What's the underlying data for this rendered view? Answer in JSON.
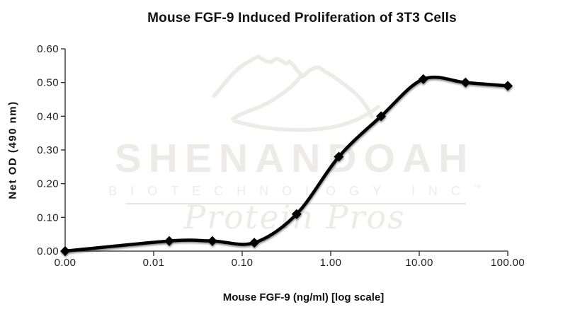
{
  "page": {
    "background": "#ffffff"
  },
  "chart_data": {
    "type": "line",
    "title": "Mouse FGF-9 Induced Proliferation of 3T3 Cells",
    "xlabel": "Mouse FGF-9 (ng/ml) [log scale]",
    "ylabel": "Net OD (490 nm)",
    "x_scale": "log",
    "grid": false,
    "legend": false,
    "ylim": [
      0,
      0.6
    ],
    "x_tick_values": [
      0,
      0.01,
      0.1,
      1,
      10,
      100
    ],
    "x_tick_labels": [
      "0.00",
      "0.01",
      "0.10",
      "1.00",
      "10.00",
      "100.00"
    ],
    "y_tick_values": [
      0,
      0.1,
      0.2,
      0.3,
      0.4,
      0.5,
      0.6
    ],
    "y_tick_labels": [
      "0.00",
      "0.10",
      "0.20",
      "0.30",
      "0.40",
      "0.50",
      "0.60"
    ],
    "series": [
      {
        "x": [
          0,
          0.015,
          0.046,
          0.137,
          0.412,
          1.235,
          3.704,
          11.11,
          33.33,
          100
        ],
        "y": [
          0.0,
          0.03,
          0.03,
          0.025,
          0.11,
          0.28,
          0.4,
          0.51,
          0.5,
          0.49
        ],
        "color": "#000000",
        "marker": "diamond",
        "smooth": true
      }
    ]
  },
  "watermark": {
    "name": "SHENANDOAH",
    "subtitle": "BIOTECHNOLOGY INC",
    "trademark": "™",
    "tagline": "Protein Pros",
    "color": "#edebe7",
    "rule_color": "#e7e5e1"
  }
}
